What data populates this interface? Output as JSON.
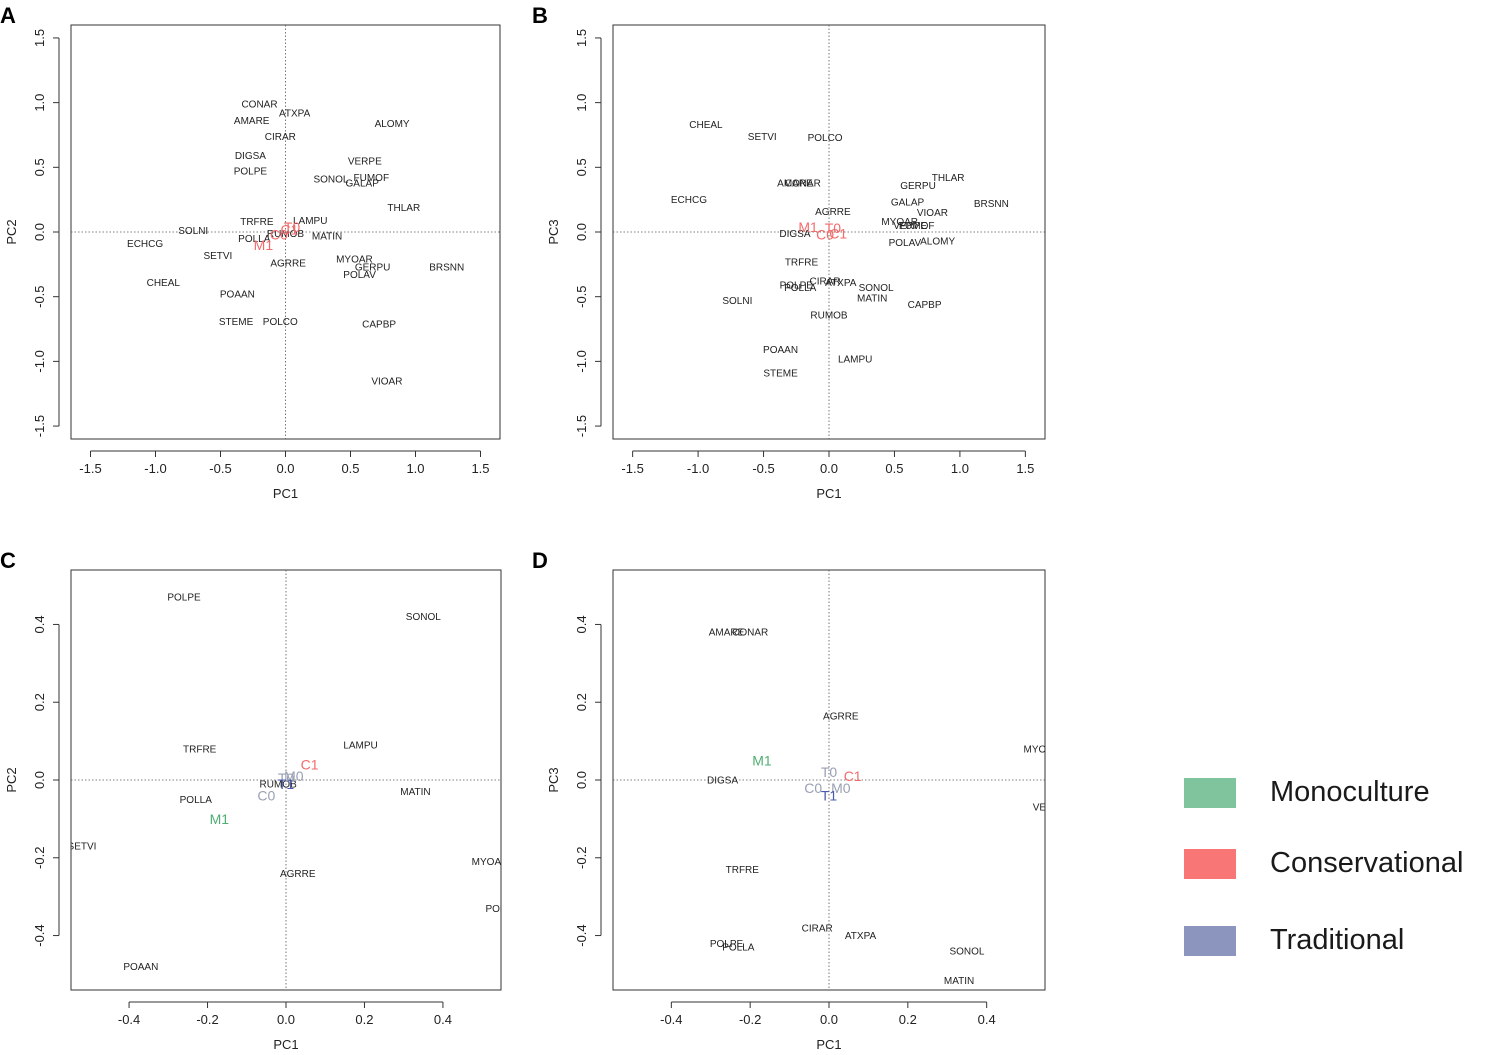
{
  "chart_data": [
    {
      "type": "scatter",
      "panel_label": "A",
      "xlabel": "PC1",
      "ylabel": "PC2",
      "xlim": [
        -1.65,
        1.65
      ],
      "ylim": [
        -1.6,
        1.6
      ],
      "xticks": [
        "-1.5",
        "-1.0",
        "-0.5",
        "0.0",
        "0.5",
        "1.0",
        "1.5"
      ],
      "yticks": [
        "-1.5",
        "-1.0",
        "-0.5",
        "0.0",
        "0.5",
        "1.0",
        "1.5"
      ],
      "points": [
        {
          "label": "CONAR",
          "x": -0.2,
          "y": 0.99
        },
        {
          "label": "ATXPA",
          "x": 0.07,
          "y": 0.92
        },
        {
          "label": "AMARE",
          "x": -0.26,
          "y": 0.86
        },
        {
          "label": "ALOMY",
          "x": 0.82,
          "y": 0.84
        },
        {
          "label": "CIRAR",
          "x": -0.04,
          "y": 0.74
        },
        {
          "label": "DIGSA",
          "x": -0.27,
          "y": 0.59
        },
        {
          "label": "VERPE",
          "x": 0.61,
          "y": 0.55
        },
        {
          "label": "POLPE",
          "x": -0.27,
          "y": 0.47
        },
        {
          "label": "SONOL",
          "x": 0.35,
          "y": 0.41
        },
        {
          "label": "FUMOF",
          "x": 0.66,
          "y": 0.42
        },
        {
          "label": "GALAP",
          "x": 0.59,
          "y": 0.38
        },
        {
          "label": "THLAR",
          "x": 0.91,
          "y": 0.19
        },
        {
          "label": "TRFRE",
          "x": -0.22,
          "y": 0.08
        },
        {
          "label": "LAMPU",
          "x": 0.19,
          "y": 0.09
        },
        {
          "label": "SOLNI",
          "x": -0.71,
          "y": 0.01
        },
        {
          "label": "RUMOB",
          "x": 0.0,
          "y": -0.01
        },
        {
          "label": "POLLA",
          "x": -0.24,
          "y": -0.05
        },
        {
          "label": "MATIN",
          "x": 0.32,
          "y": -0.03
        },
        {
          "label": "ECHCG",
          "x": -1.08,
          "y": -0.09
        },
        {
          "label": "SETVI",
          "x": -0.52,
          "y": -0.18
        },
        {
          "label": "AGRRE",
          "x": 0.02,
          "y": -0.24
        },
        {
          "label": "MYOAR",
          "x": 0.53,
          "y": -0.21
        },
        {
          "label": "GERPU",
          "x": 0.67,
          "y": -0.27
        },
        {
          "label": "BRSNN",
          "x": 1.24,
          "y": -0.27
        },
        {
          "label": "POLAV",
          "x": 0.57,
          "y": -0.33
        },
        {
          "label": "CHEAL",
          "x": -0.94,
          "y": -0.39
        },
        {
          "label": "POAAN",
          "x": -0.37,
          "y": -0.48
        },
        {
          "label": "STEME",
          "x": -0.38,
          "y": -0.69
        },
        {
          "label": "POLCO",
          "x": -0.04,
          "y": -0.69
        },
        {
          "label": "CAPBP",
          "x": 0.72,
          "y": -0.71
        },
        {
          "label": "VIOAR",
          "x": 0.78,
          "y": -1.15
        }
      ],
      "groups": [
        {
          "label": "M1",
          "x": -0.17,
          "y": -0.1,
          "color": "#f26b6b"
        },
        {
          "label": "C0",
          "x": -0.05,
          "y": -0.02,
          "color": "#f26b6b"
        },
        {
          "label": "C1",
          "x": 0.03,
          "y": 0.02,
          "color": "#f26b6b"
        },
        {
          "label": "T0",
          "x": 0.05,
          "y": 0.04,
          "color": "#f26b6b"
        }
      ]
    },
    {
      "type": "scatter",
      "panel_label": "B",
      "xlabel": "PC1",
      "ylabel": "PC3",
      "xlim": [
        -1.65,
        1.65
      ],
      "ylim": [
        -1.6,
        1.6
      ],
      "xticks": [
        "-1.5",
        "-1.0",
        "-0.5",
        "0.0",
        "0.5",
        "1.0",
        "1.5"
      ],
      "yticks": [
        "-1.5",
        "-1.0",
        "-0.5",
        "0.0",
        "0.5",
        "1.0",
        "1.5"
      ],
      "points": [
        {
          "label": "CHEAL",
          "x": -0.94,
          "y": 0.83
        },
        {
          "label": "SETVI",
          "x": -0.51,
          "y": 0.74
        },
        {
          "label": "POLCO",
          "x": -0.03,
          "y": 0.73
        },
        {
          "label": "THLAR",
          "x": 0.91,
          "y": 0.42
        },
        {
          "label": "GERPU",
          "x": 0.68,
          "y": 0.36
        },
        {
          "label": "AMARE",
          "x": -0.26,
          "y": 0.38
        },
        {
          "label": "CONAR",
          "x": -0.2,
          "y": 0.38
        },
        {
          "label": "ECHCG",
          "x": -1.07,
          "y": 0.25
        },
        {
          "label": "GALAP",
          "x": 0.6,
          "y": 0.23
        },
        {
          "label": "BRSNN",
          "x": 1.24,
          "y": 0.22
        },
        {
          "label": "AGRRE",
          "x": 0.03,
          "y": 0.16
        },
        {
          "label": "VIOAR",
          "x": 0.79,
          "y": 0.15
        },
        {
          "label": "MYOAR",
          "x": 0.54,
          "y": 0.08
        },
        {
          "label": "VERPE",
          "x": 0.62,
          "y": 0.05
        },
        {
          "label": "FUMOF",
          "x": 0.67,
          "y": 0.05
        },
        {
          "label": "DIGSA",
          "x": -0.26,
          "y": -0.01
        },
        {
          "label": "POLAV",
          "x": 0.58,
          "y": -0.08
        },
        {
          "label": "ALOMY",
          "x": 0.83,
          "y": -0.07
        },
        {
          "label": "TRFRE",
          "x": -0.21,
          "y": -0.23
        },
        {
          "label": "CIRAR",
          "x": -0.03,
          "y": -0.38
        },
        {
          "label": "ATXPA",
          "x": 0.09,
          "y": -0.39
        },
        {
          "label": "POLPE",
          "x": -0.25,
          "y": -0.41
        },
        {
          "label": "POLLA",
          "x": -0.22,
          "y": -0.43
        },
        {
          "label": "SONOL",
          "x": 0.36,
          "y": -0.43
        },
        {
          "label": "SOLNI",
          "x": -0.7,
          "y": -0.53
        },
        {
          "label": "MATIN",
          "x": 0.33,
          "y": -0.51
        },
        {
          "label": "CAPBP",
          "x": 0.73,
          "y": -0.56
        },
        {
          "label": "RUMOB",
          "x": 0.0,
          "y": -0.64
        },
        {
          "label": "POAAN",
          "x": -0.37,
          "y": -0.91
        },
        {
          "label": "LAMPU",
          "x": 0.2,
          "y": -0.98
        },
        {
          "label": "STEME",
          "x": -0.37,
          "y": -1.09
        }
      ],
      "groups": [
        {
          "label": "M1",
          "x": -0.16,
          "y": 0.04,
          "color": "#f26b6b"
        },
        {
          "label": "T0",
          "x": 0.03,
          "y": 0.03,
          "color": "#f26b6b"
        },
        {
          "label": "C0",
          "x": -0.03,
          "y": -0.02,
          "color": "#f26b6b"
        },
        {
          "label": "C1",
          "x": 0.07,
          "y": -0.01,
          "color": "#f26b6b"
        }
      ]
    },
    {
      "type": "scatter",
      "panel_label": "C",
      "xlabel": "PC1",
      "ylabel": "PC2",
      "xlim": [
        -0.548,
        0.548
      ],
      "ylim": [
        -0.54,
        0.54
      ],
      "xticks": [
        "-0.4",
        "-0.2",
        "0.0",
        "0.2",
        "0.4"
      ],
      "yticks": [
        "-0.4",
        "-0.2",
        "0.0",
        "0.2",
        "0.4"
      ],
      "points": [
        {
          "label": "POLPE",
          "x": -0.26,
          "y": 0.47
        },
        {
          "label": "SONOL",
          "x": 0.35,
          "y": 0.42
        },
        {
          "label": "LAMPU",
          "x": 0.19,
          "y": 0.09
        },
        {
          "label": "TRFRE",
          "x": -0.22,
          "y": 0.08
        },
        {
          "label": "RUMOB",
          "x": -0.02,
          "y": -0.01
        },
        {
          "label": "MATIN",
          "x": 0.33,
          "y": -0.03
        },
        {
          "label": "POLLA",
          "x": -0.23,
          "y": -0.05
        },
        {
          "label": "SETVI",
          "x": -0.52,
          "y": -0.17
        },
        {
          "label": "MYOAR",
          "x": 0.52,
          "y": -0.21
        },
        {
          "label": "AGRRE",
          "x": 0.03,
          "y": -0.24
        },
        {
          "label": "POLAV",
          "x": 0.55,
          "y": -0.33
        },
        {
          "label": "POAAN",
          "x": -0.37,
          "y": -0.48
        }
      ],
      "groups": [
        {
          "label": "C1",
          "x": 0.06,
          "y": 0.04,
          "color": "#f26b6b"
        },
        {
          "label": "M0",
          "x": 0.02,
          "y": 0.01,
          "color": "#9aa0b4"
        },
        {
          "label": "T0",
          "x": 0.0,
          "y": 0.005,
          "color": "#9aa0b4"
        },
        {
          "label": "T1",
          "x": 0.0,
          "y": -0.01,
          "color": "#4a5ab0"
        },
        {
          "label": "C0",
          "x": -0.05,
          "y": -0.04,
          "color": "#9aa0b4"
        },
        {
          "label": "M1",
          "x": -0.17,
          "y": -0.1,
          "color": "#4fae72"
        }
      ]
    },
    {
      "type": "scatter",
      "panel_label": "D",
      "xlabel": "PC1",
      "ylabel": "PC3",
      "xlim": [
        -0.548,
        0.548
      ],
      "ylim": [
        -0.54,
        0.54
      ],
      "xticks": [
        "-0.4",
        "-0.2",
        "0.0",
        "0.2",
        "0.4"
      ],
      "yticks": [
        "-0.4",
        "-0.2",
        "0.0",
        "0.2",
        "0.4"
      ],
      "points": [
        {
          "label": "AMARE",
          "x": -0.26,
          "y": 0.38
        },
        {
          "label": "CONAR",
          "x": -0.2,
          "y": 0.38
        },
        {
          "label": "AGRRE",
          "x": 0.03,
          "y": 0.165
        },
        {
          "label": "MYOAR",
          "x": 0.54,
          "y": 0.08
        },
        {
          "label": "DIGSA",
          "x": -0.27,
          "y": 0.0
        },
        {
          "label": "VERPE",
          "x": 0.56,
          "y": -0.07
        },
        {
          "label": "TRFRE",
          "x": -0.22,
          "y": -0.23
        },
        {
          "label": "CIRAR",
          "x": -0.03,
          "y": -0.38
        },
        {
          "label": "ATXPA",
          "x": 0.08,
          "y": -0.4
        },
        {
          "label": "POLPE",
          "x": -0.26,
          "y": -0.42
        },
        {
          "label": "POLLA",
          "x": -0.23,
          "y": -0.43
        },
        {
          "label": "SONOL",
          "x": 0.35,
          "y": -0.44
        },
        {
          "label": "MATIN",
          "x": 0.33,
          "y": -0.515
        }
      ],
      "groups": [
        {
          "label": "M1",
          "x": -0.17,
          "y": 0.05,
          "color": "#4fae72"
        },
        {
          "label": "T0",
          "x": 0.0,
          "y": 0.02,
          "color": "#9aa0b4"
        },
        {
          "label": "C1",
          "x": 0.06,
          "y": 0.01,
          "color": "#f26b6b"
        },
        {
          "label": "C0",
          "x": -0.04,
          "y": -0.02,
          "color": "#9aa0b4"
        },
        {
          "label": "M0",
          "x": 0.03,
          "y": -0.02,
          "color": "#9aa0b4"
        },
        {
          "label": "T1",
          "x": 0.0,
          "y": -0.04,
          "color": "#4a5ab0"
        }
      ]
    }
  ],
  "legend": [
    {
      "label": "Monoculture",
      "color": "#7fc49c"
    },
    {
      "label": "Conservational",
      "color": "#f97676"
    },
    {
      "label": "Traditional",
      "color": "#8b95bd"
    }
  ]
}
